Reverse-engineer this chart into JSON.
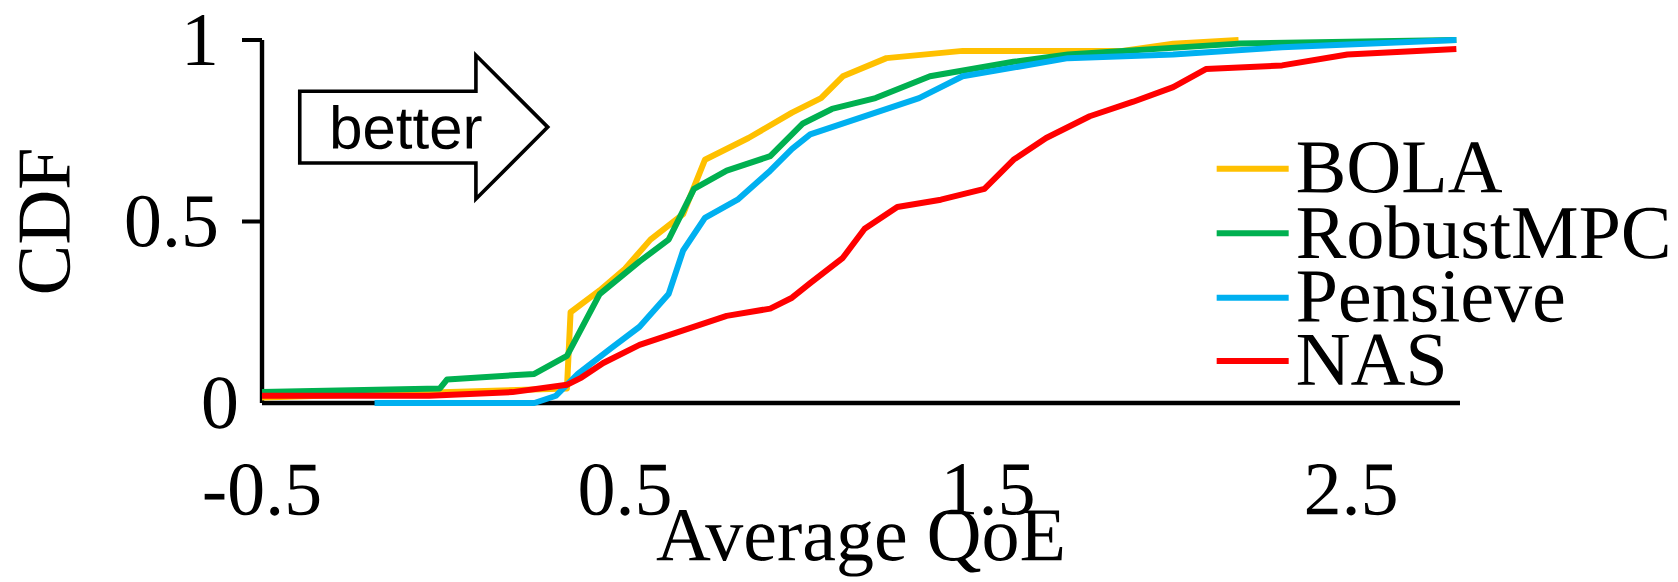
{
  "chart_data": {
    "type": "line",
    "xlabel": "Average QoE",
    "ylabel": "CDF",
    "xlim": [
      -0.5,
      2.8
    ],
    "ylim": [
      0,
      1
    ],
    "xticks": [
      -0.5,
      0.5,
      1.5,
      2.5
    ],
    "yticks": [
      0,
      0.5,
      1
    ],
    "legend": "right",
    "grid": false,
    "marker": "none",
    "line_style": "solid",
    "annotations": [
      "better"
    ],
    "series": [
      {
        "name": "BOLA",
        "color": "#ffc000",
        "x": [
          -0.5,
          0.34,
          0.35,
          0.43,
          0.5,
          0.57,
          0.66,
          0.72,
          0.84,
          0.96,
          1.04,
          1.1,
          1.22,
          1.43,
          1.87,
          2.01,
          2.19
        ],
        "values": [
          0.015,
          0.04,
          0.25,
          0.31,
          0.37,
          0.45,
          0.52,
          0.67,
          0.73,
          0.8,
          0.84,
          0.9,
          0.95,
          0.97,
          0.97,
          0.99,
          1.0
        ]
      },
      {
        "name": "RobustMPC",
        "color": "#00b050",
        "x": [
          -0.5,
          -0.01,
          0.01,
          0.25,
          0.34,
          0.43,
          0.54,
          0.62,
          0.69,
          0.78,
          0.9,
          0.99,
          1.07,
          1.19,
          1.34,
          1.57,
          1.72,
          2.19,
          2.79
        ],
        "values": [
          0.03,
          0.04,
          0.065,
          0.08,
          0.13,
          0.3,
          0.39,
          0.45,
          0.59,
          0.64,
          0.68,
          0.77,
          0.81,
          0.84,
          0.9,
          0.94,
          0.96,
          0.99,
          1.0
        ]
      },
      {
        "name": "Pensieve",
        "color": "#00b0f0",
        "x": [
          -0.19,
          0.25,
          0.31,
          0.37,
          0.46,
          0.54,
          0.62,
          0.66,
          0.72,
          0.81,
          0.9,
          0.96,
          1.01,
          1.13,
          1.31,
          1.43,
          1.72,
          2.01,
          2.31,
          2.79
        ],
        "values": [
          0.0,
          0.0,
          0.02,
          0.08,
          0.15,
          0.21,
          0.3,
          0.42,
          0.51,
          0.56,
          0.64,
          0.7,
          0.74,
          0.78,
          0.84,
          0.9,
          0.95,
          0.96,
          0.98,
          1.0
        ]
      },
      {
        "name": "NAS",
        "color": "#ff0000",
        "x": [
          -0.5,
          -0.04,
          0.19,
          0.34,
          0.38,
          0.44,
          0.54,
          0.66,
          0.78,
          0.9,
          0.96,
          1.01,
          1.1,
          1.16,
          1.25,
          1.37,
          1.49,
          1.57,
          1.66,
          1.78,
          1.9,
          2.01,
          2.1,
          2.31,
          2.49,
          2.79
        ],
        "values": [
          0.02,
          0.02,
          0.03,
          0.05,
          0.07,
          0.11,
          0.16,
          0.2,
          0.24,
          0.26,
          0.29,
          0.33,
          0.4,
          0.48,
          0.54,
          0.56,
          0.59,
          0.67,
          0.73,
          0.79,
          0.83,
          0.87,
          0.92,
          0.93,
          0.96,
          0.975
        ]
      }
    ]
  }
}
